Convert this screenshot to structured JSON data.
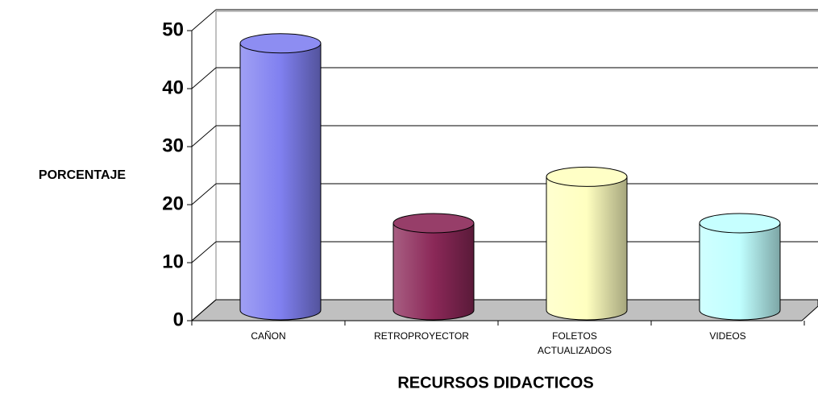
{
  "chart_data": {
    "type": "bar3d",
    "ylabel": "PORCENTAJE",
    "xlabel": "RECURSOS DIDACTICOS",
    "categories": [
      "CAÑON",
      "RETROPROYECTOR",
      "FOLETOS ACTUALIZADOS",
      "VIDEOS"
    ],
    "values": [
      46,
      15,
      23,
      15
    ],
    "colors": [
      "#8080f0",
      "#8b2858",
      "#ffffc0",
      "#c0ffff"
    ],
    "ylim": [
      0,
      50
    ],
    "yticks": [
      0,
      10,
      20,
      30,
      40,
      50
    ],
    "grid": true
  }
}
